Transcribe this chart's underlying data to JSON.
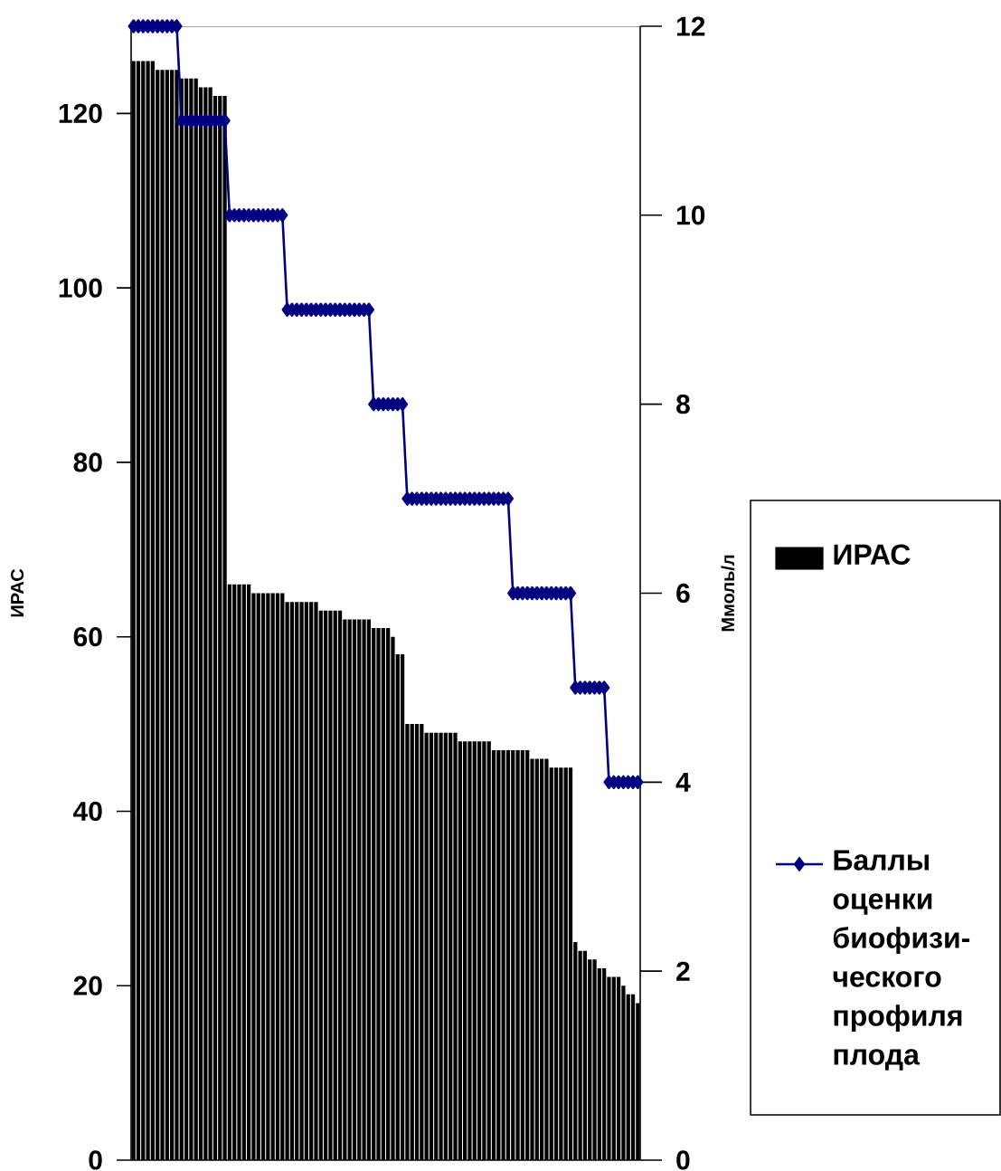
{
  "chart_data": {
    "type": "bar",
    "ylabel": "ИРАС",
    "y2label": "Ммоль/л",
    "legend": "right",
    "marker": "diamond",
    "categories": [
      null,
      null,
      null,
      null,
      null,
      null,
      null,
      null,
      null,
      null,
      null,
      null,
      null,
      null,
      null,
      null,
      null,
      null,
      null,
      null,
      null,
      null,
      null,
      null,
      null,
      null,
      null,
      null,
      null,
      null,
      null,
      null,
      null,
      null,
      null,
      null,
      null,
      null,
      null,
      null,
      null,
      null,
      null,
      null,
      null,
      null,
      null,
      null,
      null,
      null,
      null,
      null,
      null,
      null,
      null,
      null,
      null,
      null,
      null,
      null,
      null,
      null,
      null,
      null,
      null,
      null,
      null,
      null,
      null,
      null,
      null,
      null,
      null,
      null,
      null,
      null,
      null,
      null,
      null,
      null,
      null,
      null,
      null,
      null,
      null,
      null,
      null,
      null,
      null,
      null,
      null,
      null,
      null,
      null,
      null,
      null,
      null,
      null,
      null,
      null,
      null,
      null,
      null,
      null,
      null,
      null
    ],
    "ylim": [
      0,
      130
    ],
    "yticks": [
      0,
      20,
      40,
      60,
      80,
      100,
      120
    ],
    "y2lim": [
      0,
      12
    ],
    "y2ticks": [
      0,
      2,
      4,
      6,
      8,
      10,
      12
    ],
    "series": [
      {
        "name": "ИРАС",
        "color": "#000000",
        "values": [
          126,
          126,
          126,
          126,
          126,
          125,
          125,
          125,
          125,
          125,
          124,
          124,
          124,
          124,
          123,
          123,
          123,
          122,
          122,
          122,
          66,
          66,
          66,
          66,
          66,
          65,
          65,
          65,
          65,
          65,
          65,
          65,
          64,
          64,
          64,
          64,
          64,
          64,
          64,
          63,
          63,
          63,
          63,
          63,
          62,
          62,
          62,
          62,
          62,
          62,
          61,
          61,
          61,
          61,
          60,
          58,
          58,
          50,
          50,
          50,
          50,
          49,
          49,
          49,
          49,
          49,
          49,
          49,
          48,
          48,
          48,
          48,
          48,
          48,
          48,
          47,
          47,
          47,
          47,
          47,
          47,
          47,
          47,
          46,
          46,
          46,
          46,
          45,
          45,
          45,
          45,
          45,
          25,
          24,
          24,
          23,
          23,
          22,
          22,
          21,
          21,
          21,
          20,
          19,
          19,
          18
        ]
      },
      {
        "name": "Баллы оценки биофизи-ческого профиля плода",
        "type": "line",
        "axis": "y2",
        "color": "#000080",
        "values": [
          12,
          12,
          12,
          12,
          12,
          12,
          12,
          12,
          12,
          12,
          11,
          11,
          11,
          11,
          11,
          11,
          11,
          11,
          11,
          11,
          10,
          10,
          10,
          10,
          10,
          10,
          10,
          10,
          10,
          10,
          10,
          10,
          9,
          9,
          9,
          9,
          9,
          9,
          9,
          9,
          9,
          9,
          9,
          9,
          9,
          9,
          9,
          9,
          9,
          9,
          8,
          8,
          8,
          8,
          8,
          8,
          8,
          7,
          7,
          7,
          7,
          7,
          7,
          7,
          7,
          7,
          7,
          7,
          7,
          7,
          7,
          7,
          7,
          7,
          7,
          7,
          7,
          7,
          7,
          6,
          6,
          6,
          6,
          6,
          6,
          6,
          6,
          6,
          6,
          6,
          6,
          6,
          5,
          5,
          5,
          5,
          5,
          5,
          5,
          4,
          4,
          4,
          4,
          4,
          4,
          4
        ]
      }
    ]
  }
}
